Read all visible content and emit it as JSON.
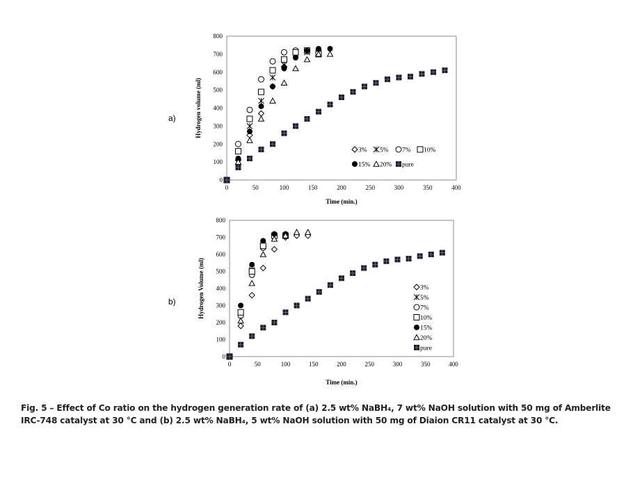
{
  "chart_data": [
    {
      "type": "scatter",
      "panel": "a)",
      "title": "",
      "xlabel": "Time (min.)",
      "ylabel": "Hydrogen volume (ml)",
      "xlim": [
        0,
        400
      ],
      "ylim": [
        0,
        800
      ],
      "xticks": [
        0,
        50,
        100,
        150,
        200,
        250,
        300,
        350,
        400
      ],
      "yticks": [
        0,
        100,
        200,
        300,
        400,
        500,
        600,
        700,
        800
      ],
      "legend": "bottom-right, two rows",
      "series": [
        {
          "name": "3%",
          "marker": "diamond",
          "x": [
            0,
            20,
            40,
            60,
            80,
            100,
            120,
            140
          ],
          "y": [
            0,
            110,
            250,
            370,
            520,
            630,
            700,
            720
          ]
        },
        {
          "name": "5%",
          "marker": "asterisk",
          "x": [
            0,
            20,
            40,
            60,
            80,
            100,
            120,
            140,
            160
          ],
          "y": [
            0,
            100,
            300,
            440,
            570,
            640,
            700,
            710,
            710
          ]
        },
        {
          "name": "7%",
          "marker": "circle-open",
          "x": [
            0,
            20,
            40,
            60,
            80,
            100,
            120,
            140,
            160
          ],
          "y": [
            0,
            200,
            390,
            560,
            660,
            710,
            720,
            720,
            720
          ]
        },
        {
          "name": "10%",
          "marker": "square-open",
          "x": [
            0,
            20,
            40,
            60,
            80,
            100,
            120,
            140,
            160
          ],
          "y": [
            0,
            160,
            340,
            490,
            610,
            670,
            710,
            720,
            700
          ]
        },
        {
          "name": "15%",
          "marker": "circle-filled",
          "x": [
            0,
            20,
            40,
            60,
            80,
            100,
            120,
            140,
            160,
            180
          ],
          "y": [
            0,
            120,
            270,
            410,
            520,
            620,
            680,
            720,
            730,
            730
          ]
        },
        {
          "name": "20%",
          "marker": "triangle",
          "x": [
            0,
            20,
            40,
            60,
            80,
            100,
            120,
            140,
            160,
            180
          ],
          "y": [
            0,
            100,
            220,
            340,
            440,
            540,
            620,
            670,
            700,
            700
          ]
        },
        {
          "name": "pure",
          "marker": "square-filled",
          "x": [
            0,
            20,
            40,
            60,
            80,
            100,
            120,
            140,
            160,
            180,
            200,
            220,
            240,
            260,
            280,
            300,
            320,
            340,
            360,
            380
          ],
          "y": [
            0,
            70,
            120,
            170,
            200,
            260,
            300,
            340,
            380,
            420,
            460,
            490,
            520,
            540,
            560,
            570,
            575,
            590,
            600,
            610
          ]
        }
      ]
    },
    {
      "type": "scatter",
      "panel": "b)",
      "title": "",
      "xlabel": "Time (min.)",
      "ylabel": "Hydrogen Volume (ml)",
      "xlim": [
        0,
        400
      ],
      "ylim": [
        0,
        800
      ],
      "xticks": [
        0,
        50,
        100,
        150,
        200,
        250,
        300,
        350,
        400
      ],
      "yticks": [
        0,
        100,
        200,
        300,
        400,
        500,
        600,
        700,
        800
      ],
      "legend": "right, single column",
      "series": [
        {
          "name": "3%",
          "marker": "diamond",
          "x": [
            0,
            20,
            40,
            60,
            80,
            100,
            120,
            140
          ],
          "y": [
            0,
            180,
            360,
            520,
            630,
            700,
            710,
            710
          ]
        },
        {
          "name": "5%",
          "marker": "asterisk",
          "x": [
            0,
            20,
            40,
            60,
            80,
            100
          ],
          "y": [
            0,
            250,
            510,
            660,
            710,
            710
          ]
        },
        {
          "name": "7%",
          "marker": "circle-open",
          "x": [
            0,
            20,
            40,
            60,
            80,
            100
          ],
          "y": [
            0,
            240,
            480,
            640,
            710,
            710
          ]
        },
        {
          "name": "10%",
          "marker": "square-open",
          "x": [
            0,
            20,
            40,
            60,
            80,
            100
          ],
          "y": [
            0,
            260,
            500,
            650,
            710,
            710
          ]
        },
        {
          "name": "15%",
          "marker": "circle-filled",
          "x": [
            0,
            20,
            40,
            60,
            80,
            100
          ],
          "y": [
            0,
            300,
            540,
            680,
            720,
            720
          ]
        },
        {
          "name": "20%",
          "marker": "triangle",
          "x": [
            0,
            20,
            40,
            60,
            80,
            100,
            120,
            140
          ],
          "y": [
            0,
            210,
            430,
            600,
            690,
            710,
            730,
            730
          ]
        },
        {
          "name": "pure",
          "marker": "square-filled",
          "x": [
            0,
            20,
            40,
            60,
            80,
            100,
            120,
            140,
            160,
            180,
            200,
            220,
            240,
            260,
            280,
            300,
            320,
            340,
            360,
            380
          ],
          "y": [
            0,
            70,
            120,
            170,
            200,
            260,
            300,
            340,
            380,
            420,
            460,
            490,
            520,
            540,
            560,
            570,
            575,
            590,
            600,
            610
          ]
        }
      ]
    }
  ],
  "caption": {
    "line1": "Fig. 5 – Effect of Co ratio on the hydrogen generation rate of (a) 2.5 wt% NaBH₄, 7 wt% NaOH solution with 50 mg of Amberlite",
    "line2": "IRC-748 catalyst at 30 °C and (b) 2.5 wt% NaBH₄, 5 wt% NaOH solution with 50 mg of Diaion CR11 catalyst at 30 °C."
  }
}
